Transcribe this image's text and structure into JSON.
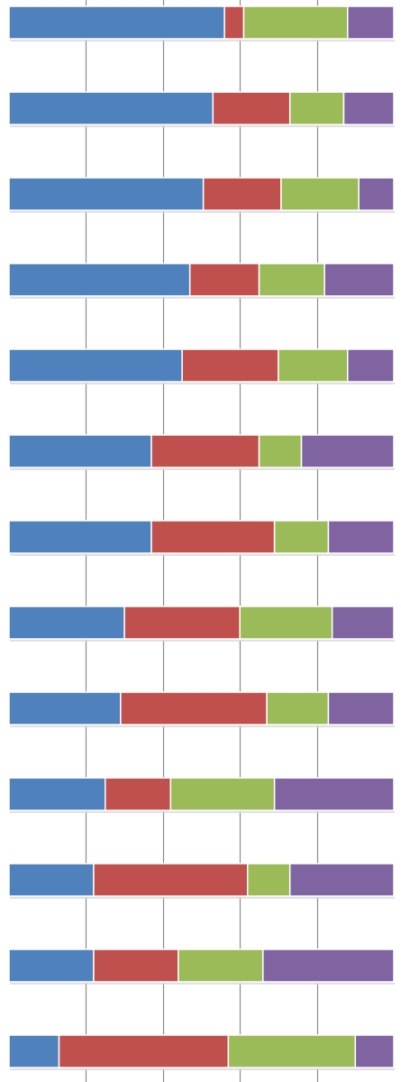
{
  "chart_data": {
    "type": "bar",
    "orientation": "horizontal",
    "stacked": "percent",
    "title": "",
    "xlabel": "",
    "ylabel": "",
    "xlim": [
      0,
      100
    ],
    "grid": true,
    "legend": "none",
    "colors": [
      "#4f81bd",
      "#c0504d",
      "#9bbb59",
      "#8064a2"
    ],
    "series": [
      {
        "values": [
          56,
          53,
          50,
          47,
          45,
          37,
          37,
          30,
          29,
          25,
          22,
          22,
          13
        ]
      },
      {
        "values": [
          5,
          20,
          20,
          18,
          25,
          28,
          32,
          30,
          38,
          17,
          40,
          22,
          44
        ]
      },
      {
        "values": [
          27,
          14,
          20,
          17,
          18,
          11,
          14,
          24,
          16,
          27,
          11,
          22,
          33
        ]
      },
      {
        "values": [
          12,
          13,
          9,
          18,
          12,
          24,
          17,
          16,
          17,
          31,
          27,
          34,
          10
        ]
      }
    ]
  }
}
